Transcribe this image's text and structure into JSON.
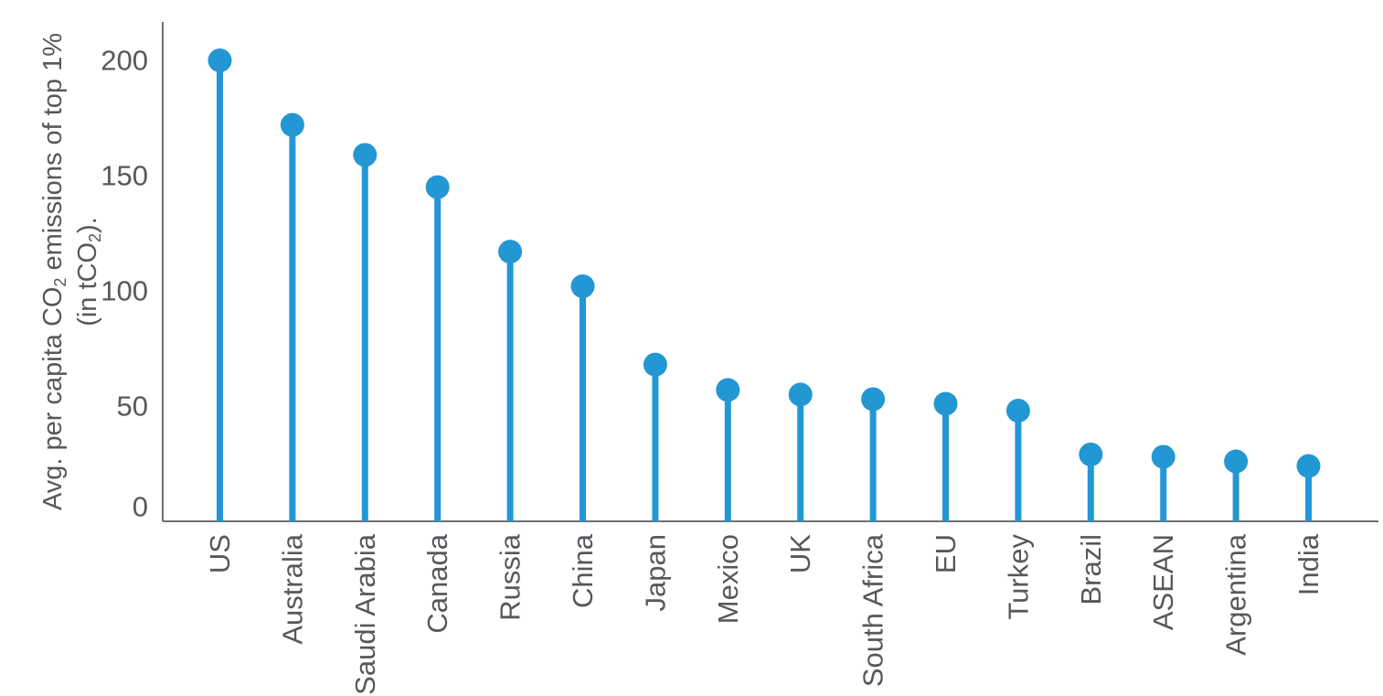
{
  "chart_data": {
    "type": "bar",
    "variant": "lollipop",
    "title": "",
    "xlabel": "",
    "ylabel": "Avg. per capita CO2 emissions of top 1% (in tCO2).",
    "ylabel_lines": [
      [
        {
          "t": "Avg. per capita CO"
        },
        {
          "t": "2",
          "sub": true
        },
        {
          "t": " emissions of top 1%"
        }
      ],
      [
        {
          "t": "(in tCO"
        },
        {
          "t": "2",
          "sub": true
        },
        {
          "t": ")."
        }
      ]
    ],
    "categories": [
      "US",
      "Australia",
      "Saudi Arabia",
      "Canada",
      "Russia",
      "China",
      "Japan",
      "Mexico",
      "UK",
      "South Africa",
      "EU",
      "Turkey",
      "Brazil",
      "ASEAN",
      "Argentina",
      "India"
    ],
    "values": [
      200,
      172,
      159,
      145,
      117,
      102,
      68,
      57,
      55,
      53,
      51,
      48,
      29,
      28,
      26,
      24
    ],
    "yticks": [
      0,
      50,
      100,
      150,
      200
    ],
    "ylim": [
      0,
      216
    ],
    "grid": false,
    "legend": null,
    "marker": "circle",
    "label_rotation": -90
  },
  "colors": {
    "accent": "#2397d4",
    "text": "#57585c",
    "axis": "#6e6f72",
    "background": "#ffffff"
  }
}
